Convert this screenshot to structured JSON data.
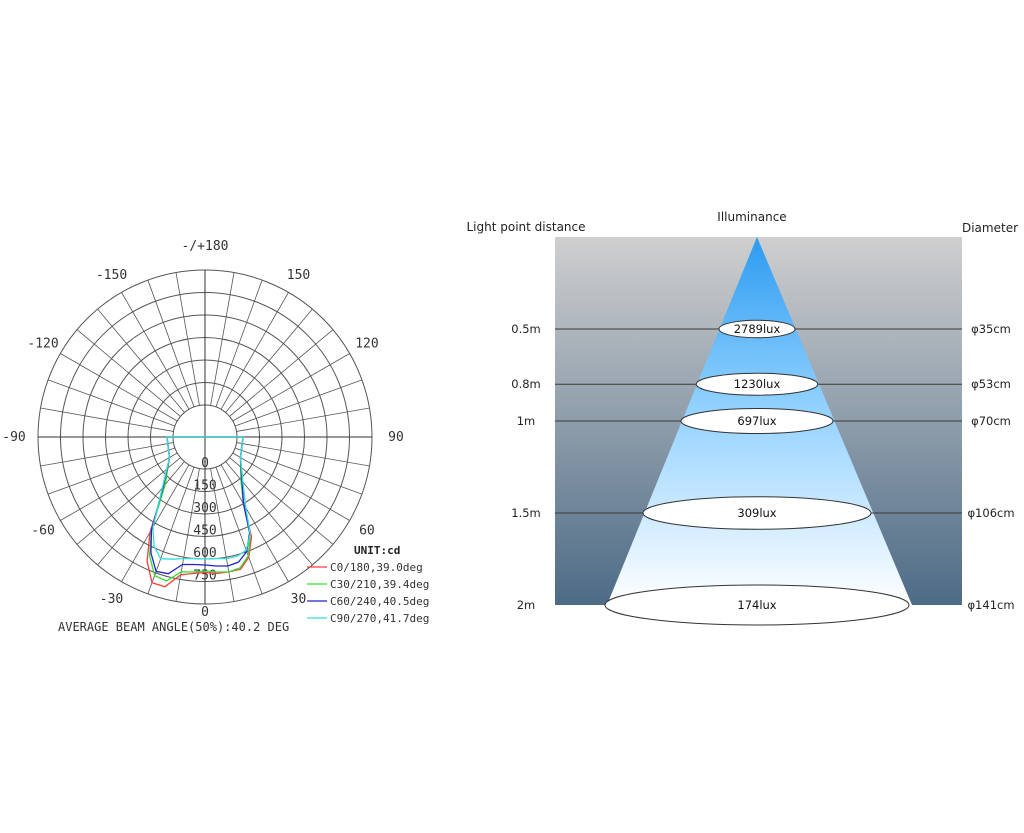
{
  "colors": {
    "c0": "#ff3b3b",
    "c30": "#33dd33",
    "c60": "#2222cc",
    "c90": "#33dddd",
    "grid": "#555555",
    "cone_top": "#2d9bf0",
    "cone_bottom": "#ffffff",
    "bg_top": "#cfcfcf",
    "bg_bottom": "#4d6b86"
  },
  "chart_data": [
    {
      "type": "polar",
      "unit_label": "UNIT:cd",
      "footer": "AVERAGE BEAM ANGLE(50%):40.2 DEG",
      "radial_ticks": [
        "0",
        "150",
        "300",
        "450",
        "600",
        "750"
      ],
      "rmax": 900,
      "angle_ticks": [
        {
          "deg": 180,
          "label": "-/+180"
        },
        {
          "deg": -150,
          "label": "-150"
        },
        {
          "deg": 150,
          "label": "150"
        },
        {
          "deg": -120,
          "label": "-120"
        },
        {
          "deg": 120,
          "label": "120"
        },
        {
          "deg": -90,
          "label": "-90"
        },
        {
          "deg": 90,
          "label": "90"
        },
        {
          "deg": -60,
          "label": "-60"
        },
        {
          "deg": 60,
          "label": "60"
        },
        {
          "deg": -30,
          "label": "-30"
        },
        {
          "deg": 30,
          "label": "30"
        },
        {
          "deg": 0,
          "label": "0"
        }
      ],
      "series": [
        {
          "name": "C0/180,39.0deg",
          "color_key": "c0",
          "points": [
            [
              -90,
              40
            ],
            [
              -60,
              60
            ],
            [
              -40,
              200
            ],
            [
              -30,
              520
            ],
            [
              -25,
              700
            ],
            [
              -20,
              820
            ],
            [
              -15,
              820
            ],
            [
              -10,
              720
            ],
            [
              -5,
              700
            ],
            [
              0,
              690
            ],
            [
              5,
              700
            ],
            [
              10,
              700
            ],
            [
              15,
              700
            ],
            [
              20,
              640
            ],
            [
              25,
              520
            ],
            [
              30,
              300
            ],
            [
              40,
              160
            ],
            [
              60,
              60
            ],
            [
              90,
              40
            ]
          ]
        },
        {
          "name": "C30/210,39.4deg",
          "color_key": "c30",
          "points": [
            [
              -90,
              40
            ],
            [
              -60,
              60
            ],
            [
              -40,
              200
            ],
            [
              -30,
              500
            ],
            [
              -25,
              660
            ],
            [
              -20,
              770
            ],
            [
              -15,
              780
            ],
            [
              -10,
              700
            ],
            [
              -5,
              690
            ],
            [
              0,
              680
            ],
            [
              5,
              690
            ],
            [
              10,
              700
            ],
            [
              15,
              690
            ],
            [
              20,
              630
            ],
            [
              25,
              500
            ],
            [
              30,
              300
            ],
            [
              40,
              160
            ],
            [
              60,
              60
            ],
            [
              90,
              40
            ]
          ]
        },
        {
          "name": "C60/240,40.5deg",
          "color_key": "c60",
          "points": [
            [
              -90,
              40
            ],
            [
              -60,
              60
            ],
            [
              -40,
              220
            ],
            [
              -30,
              500
            ],
            [
              -25,
              640
            ],
            [
              -20,
              740
            ],
            [
              -15,
              730
            ],
            [
              -10,
              650
            ],
            [
              -5,
              640
            ],
            [
              0,
              640
            ],
            [
              5,
              650
            ],
            [
              10,
              660
            ],
            [
              15,
              650
            ],
            [
              20,
              600
            ],
            [
              25,
              490
            ],
            [
              30,
              300
            ],
            [
              40,
              170
            ],
            [
              60,
              60
            ],
            [
              90,
              40
            ]
          ]
        },
        {
          "name": "C90/270,41.7deg",
          "color_key": "c90",
          "points": [
            [
              -90,
              40
            ],
            [
              -60,
              60
            ],
            [
              -40,
              230
            ],
            [
              -30,
              480
            ],
            [
              -25,
              590
            ],
            [
              -20,
              650
            ],
            [
              -15,
              630
            ],
            [
              -10,
              610
            ],
            [
              -5,
              600
            ],
            [
              0,
              600
            ],
            [
              5,
              600
            ],
            [
              10,
              610
            ],
            [
              15,
              610
            ],
            [
              20,
              590
            ],
            [
              25,
              500
            ],
            [
              30,
              330
            ],
            [
              40,
              180
            ],
            [
              60,
              60
            ],
            [
              90,
              40
            ]
          ]
        }
      ]
    },
    {
      "type": "illuminance-cone",
      "headers": {
        "distance": "Light point distance",
        "illuminance": "Illuminance",
        "diameter": "Diameter"
      },
      "levels": [
        {
          "distance": "0.5m",
          "lux": "2789lux",
          "diameter": "φ35cm",
          "distance_m": 0.5,
          "diameter_cm": 35
        },
        {
          "distance": "0.8m",
          "lux": "1230lux",
          "diameter": "φ53cm",
          "distance_m": 0.8,
          "diameter_cm": 53
        },
        {
          "distance": "1m",
          "lux": "697lux",
          "diameter": "φ70cm",
          "distance_m": 1.0,
          "diameter_cm": 70
        },
        {
          "distance": "1.5m",
          "lux": "309lux",
          "diameter": "φ106cm",
          "distance_m": 1.5,
          "diameter_cm": 106
        },
        {
          "distance": "2m",
          "lux": "174lux",
          "diameter": "φ141cm",
          "distance_m": 2.0,
          "diameter_cm": 141
        }
      ]
    }
  ]
}
